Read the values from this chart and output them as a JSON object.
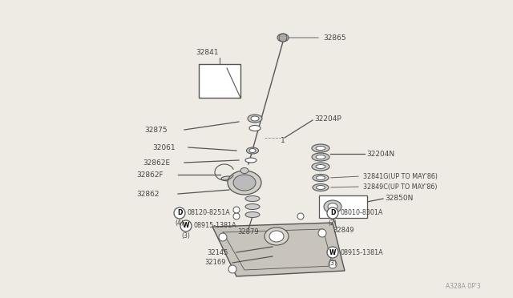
{
  "bg_color": "#eeeae4",
  "dc": "#555555",
  "lc": "#666666",
  "tc": "#444444",
  "watermark": "A328A 0P'3",
  "figsize": [
    6.4,
    3.72
  ],
  "dpi": 100,
  "xlim": [
    0,
    640
  ],
  "ylim": [
    0,
    372
  ]
}
